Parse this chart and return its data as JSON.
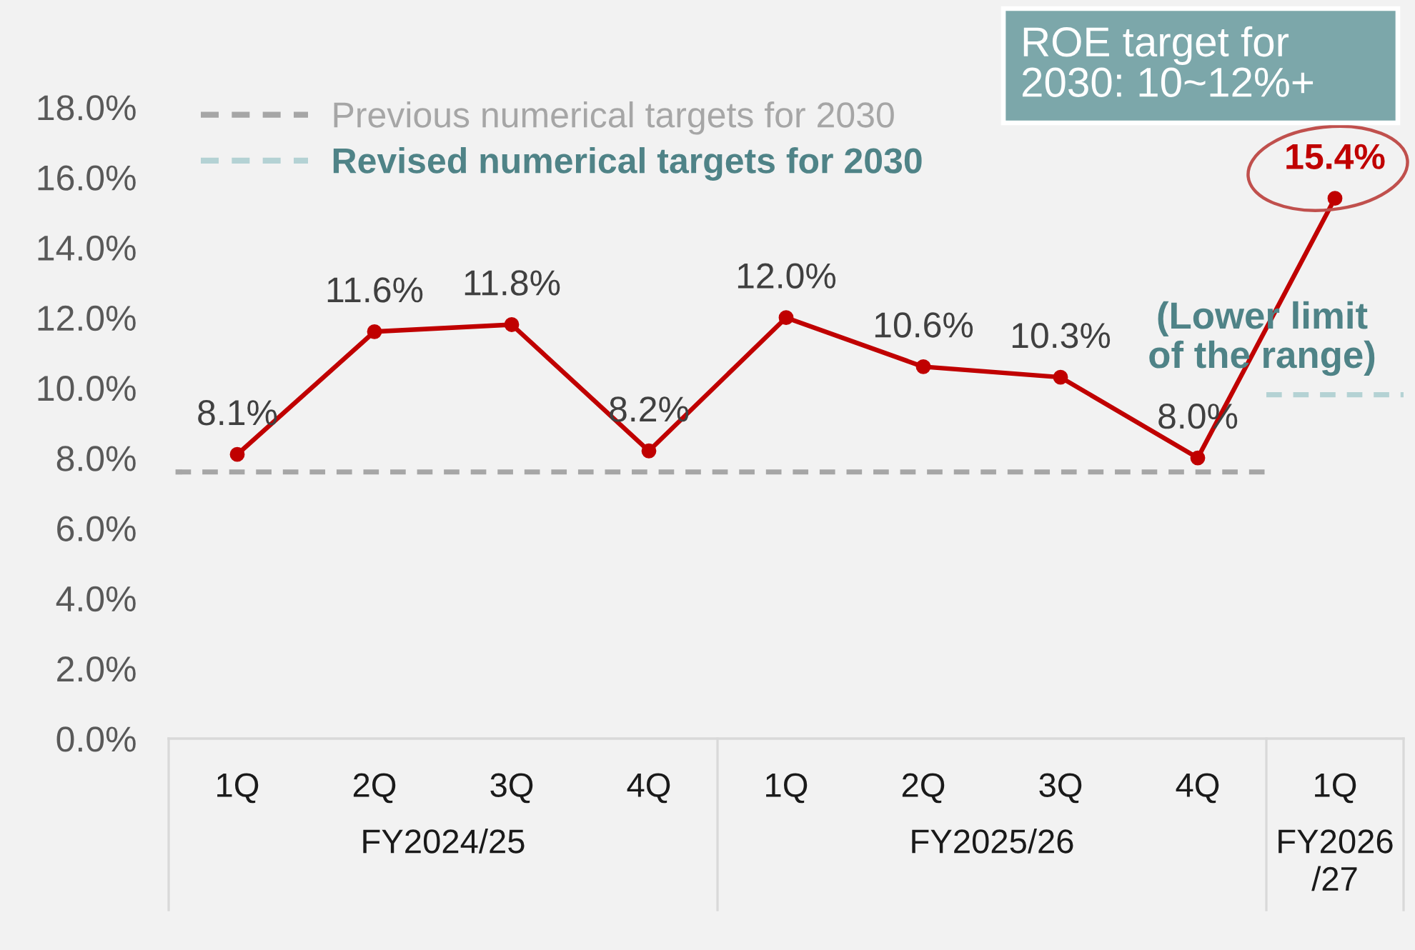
{
  "chart_data": {
    "type": "line",
    "categories": [
      "1Q",
      "2Q",
      "3Q",
      "4Q",
      "1Q",
      "2Q",
      "3Q",
      "4Q",
      "1Q"
    ],
    "series": [
      {
        "color": "#c00000",
        "values": [
          8.1,
          11.6,
          11.8,
          8.2,
          12.0,
          10.6,
          10.3,
          8.0,
          15.4
        ],
        "value_labels": [
          "8.1%",
          "11.6%",
          "11.8%",
          "8.2%",
          "12.0%",
          "10.6%",
          "10.3%",
          "8.0%",
          "15.4%"
        ]
      }
    ],
    "marker": "circle",
    "line_style": "solid",
    "ylim": [
      0,
      18
    ],
    "yticks": [
      {
        "value": 0,
        "label": "0.0%"
      },
      {
        "value": 2,
        "label": "2.0%"
      },
      {
        "value": 4,
        "label": "4.0%"
      },
      {
        "value": 6,
        "label": "6.0%"
      },
      {
        "value": 8,
        "label": "8.0%"
      },
      {
        "value": 10,
        "label": "10.0%"
      },
      {
        "value": 12,
        "label": "12.0%"
      },
      {
        "value": 14,
        "label": "14.0%"
      },
      {
        "value": 16,
        "label": "16.0%"
      },
      {
        "value": 18,
        "label": "18.0%"
      }
    ],
    "ref_lines": [
      {
        "axis": "y",
        "value": 7.6,
        "label": "Previous numerical targets for 2030",
        "color": "#a6a6a6",
        "line_style": "dashed"
      },
      {
        "axis": "y",
        "value": 9.8,
        "label": "Revised numerical targets for 2030",
        "color": "#b4d2d4",
        "line_style": "dashed"
      }
    ],
    "legend": "top left",
    "annotations": [
      "FY2024/25",
      "FY2025/26",
      "FY2026\n/27",
      "ROE target for\n2030: 10~12%+",
      "(Lower limit\nof the range)"
    ]
  }
}
